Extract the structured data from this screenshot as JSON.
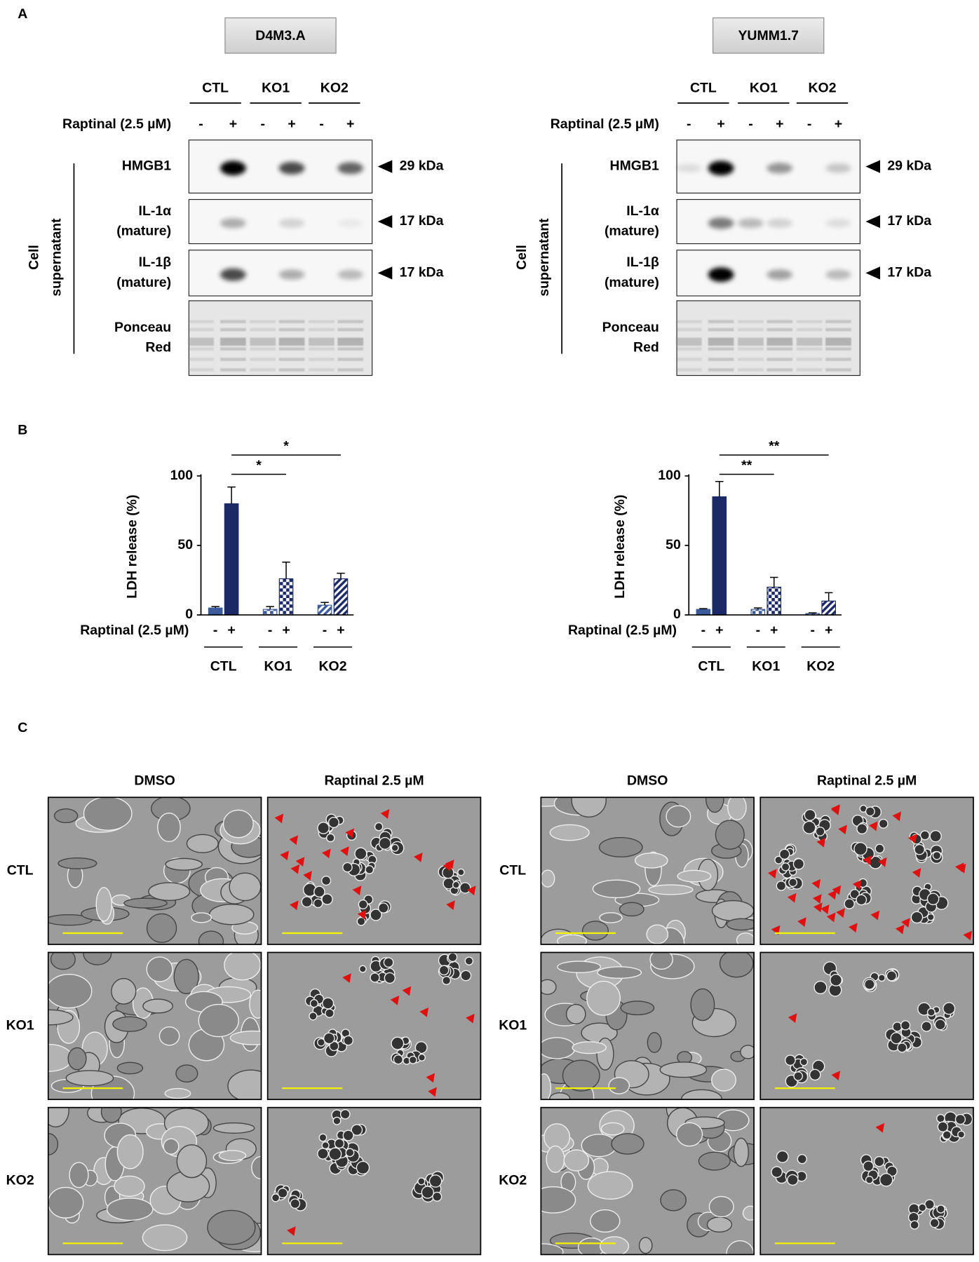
{
  "panel_labels": [
    "A",
    "B",
    "C"
  ],
  "panel_a": {
    "blots": [
      {
        "cell_line": "D4M3.A",
        "groups": [
          "CTL",
          "KO1",
          "KO2"
        ],
        "treatment_label": "Raptinal (2.5 µM)",
        "signs": [
          "-",
          "+",
          "-",
          "+",
          "-",
          "+"
        ],
        "side_label": [
          "Cell",
          "supernatant"
        ],
        "rows": [
          {
            "label": [
              "HMGB1"
            ],
            "size": "29 kDa"
          },
          {
            "label": [
              "IL-1α",
              "(mature)"
            ],
            "size": "17 kDa"
          },
          {
            "label": [
              "IL-1β",
              "(mature)"
            ],
            "size": "17 kDa"
          },
          {
            "label": [
              "Ponceau",
              "Red"
            ]
          }
        ]
      },
      {
        "cell_line": "YUMM1.7",
        "groups": [
          "CTL",
          "KO1",
          "KO2"
        ],
        "treatment_label": "Raptinal (2.5 µM)",
        "signs": [
          "-",
          "+",
          "-",
          "+",
          "-",
          "+"
        ],
        "side_label": [
          "Cell",
          "supernatant"
        ],
        "rows": [
          {
            "label": [
              "HMGB1"
            ],
            "size": "29 kDa"
          },
          {
            "label": [
              "IL-1α",
              "(mature)"
            ],
            "size": "17 kDa"
          },
          {
            "label": [
              "IL-1β",
              "(mature)"
            ],
            "size": "17 kDa"
          },
          {
            "label": [
              "Ponceau",
              "Red"
            ]
          }
        ]
      }
    ]
  },
  "chart_data": [
    {
      "type": "bar",
      "y_label": "LDH release (%)",
      "x_label": "Raptinal (2.5 µM)",
      "categories": [
        "-",
        "+",
        "-",
        "+",
        "-",
        "+"
      ],
      "groups": [
        "CTL",
        "KO1",
        "KO2"
      ],
      "values": [
        5,
        80,
        4,
        26,
        7,
        26
      ],
      "errors": [
        1,
        12,
        2,
        12,
        2,
        4
      ],
      "colors": [
        "#3b5b9a",
        "#1b2a66",
        "#3b5b9a",
        "#1b2a66",
        "#3b5b9a",
        "#1b2a66"
      ],
      "patterns": [
        "solid",
        "solid",
        "checker",
        "checker",
        "stripes",
        "stripes"
      ],
      "ylim": [
        0,
        100
      ],
      "yticks": [
        0,
        50,
        100
      ],
      "significance": [
        {
          "from": 1,
          "to": 3,
          "label": "*"
        },
        {
          "from": 1,
          "to": 5,
          "label": "*"
        }
      ]
    },
    {
      "type": "bar",
      "y_label": "LDH release (%)",
      "x_label": "Raptinal (2.5 µM)",
      "categories": [
        "-",
        "+",
        "-",
        "+",
        "-",
        "+"
      ],
      "groups": [
        "CTL",
        "KO1",
        "KO2"
      ],
      "values": [
        4,
        85,
        4,
        20,
        1,
        10
      ],
      "errors": [
        0.5,
        11,
        1,
        7,
        0.5,
        6
      ],
      "colors": [
        "#3b5b9a",
        "#1b2a66",
        "#3b5b9a",
        "#1b2a66",
        "#3b5b9a",
        "#1b2a66"
      ],
      "patterns": [
        "solid",
        "solid",
        "checker",
        "checker",
        "stripes",
        "stripes"
      ],
      "ylim": [
        0,
        100
      ],
      "yticks": [
        0,
        50,
        100
      ],
      "significance": [
        {
          "from": 1,
          "to": 3,
          "label": "**"
        },
        {
          "from": 1,
          "to": 5,
          "label": "**"
        }
      ]
    }
  ],
  "panel_c": {
    "groups": [
      {
        "columns": [
          "DMSO",
          "Raptinal 2.5 µM"
        ],
        "rows": [
          "CTL",
          "KO1",
          "KO2"
        ]
      },
      {
        "columns": [
          "DMSO",
          "Raptinal 2.5 µM"
        ],
        "rows": [
          "CTL",
          "KO1",
          "KO2"
        ]
      }
    ]
  }
}
